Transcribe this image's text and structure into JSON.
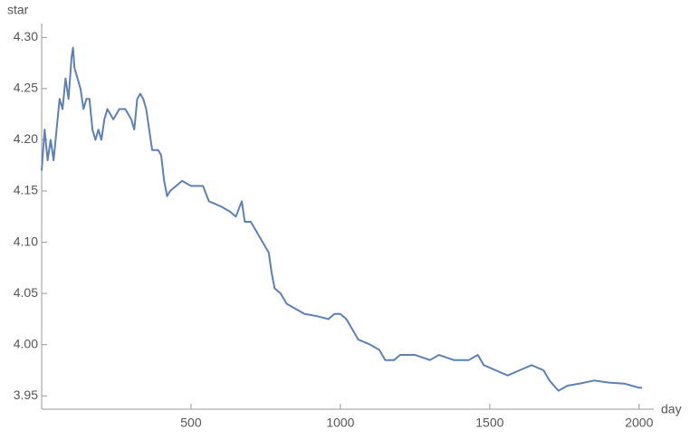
{
  "chart_data": {
    "type": "line",
    "y_label": "star",
    "x_label": "day",
    "x": [
      0,
      10,
      20,
      30,
      40,
      50,
      60,
      70,
      80,
      90,
      100,
      105,
      110,
      120,
      130,
      140,
      150,
      160,
      170,
      180,
      190,
      200,
      210,
      220,
      240,
      260,
      280,
      300,
      310,
      320,
      330,
      340,
      350,
      360,
      370,
      390,
      400,
      410,
      420,
      430,
      450,
      470,
      500,
      540,
      560,
      600,
      630,
      650,
      670,
      680,
      700,
      720,
      740,
      760,
      770,
      780,
      800,
      820,
      850,
      880,
      920,
      960,
      980,
      1000,
      1020,
      1040,
      1060,
      1100,
      1130,
      1150,
      1180,
      1200,
      1250,
      1300,
      1330,
      1380,
      1430,
      1460,
      1480,
      1520,
      1560,
      1600,
      1640,
      1680,
      1700,
      1730,
      1760,
      1800,
      1850,
      1900,
      1950,
      2000,
      2010
    ],
    "values": [
      4.17,
      4.21,
      4.18,
      4.2,
      4.18,
      4.21,
      4.24,
      4.23,
      4.26,
      4.24,
      4.28,
      4.29,
      4.27,
      4.26,
      4.25,
      4.23,
      4.24,
      4.24,
      4.21,
      4.2,
      4.21,
      4.2,
      4.22,
      4.23,
      4.22,
      4.23,
      4.23,
      4.22,
      4.21,
      4.24,
      4.245,
      4.24,
      4.23,
      4.21,
      4.19,
      4.19,
      4.185,
      4.16,
      4.145,
      4.15,
      4.155,
      4.16,
      4.155,
      4.155,
      4.14,
      4.135,
      4.13,
      4.125,
      4.14,
      4.12,
      4.12,
      4.11,
      4.1,
      4.09,
      4.07,
      4.055,
      4.05,
      4.04,
      4.035,
      4.03,
      4.028,
      4.025,
      4.03,
      4.03,
      4.025,
      4.015,
      4.005,
      4.0,
      3.995,
      3.985,
      3.985,
      3.99,
      3.99,
      3.985,
      3.99,
      3.985,
      3.985,
      3.99,
      3.98,
      3.975,
      3.97,
      3.975,
      3.98,
      3.975,
      3.965,
      3.955,
      3.96,
      3.962,
      3.965,
      3.963,
      3.962,
      3.958,
      3.958
    ],
    "color": "#5e81b5",
    "xlim": [
      0,
      2040
    ],
    "ylim": [
      3.937,
      4.31
    ],
    "xticks": [
      500,
      1000,
      1500,
      2000
    ],
    "yticks": [
      3.95,
      {
        "value": 4,
        "label": "4.00"
      },
      4.05,
      {
        "value": 4.1,
        "label": "4.10"
      },
      4.15,
      {
        "value": 4.2,
        "label": "4.20"
      },
      4.25,
      {
        "value": 4.3,
        "label": "4.30"
      }
    ]
  }
}
